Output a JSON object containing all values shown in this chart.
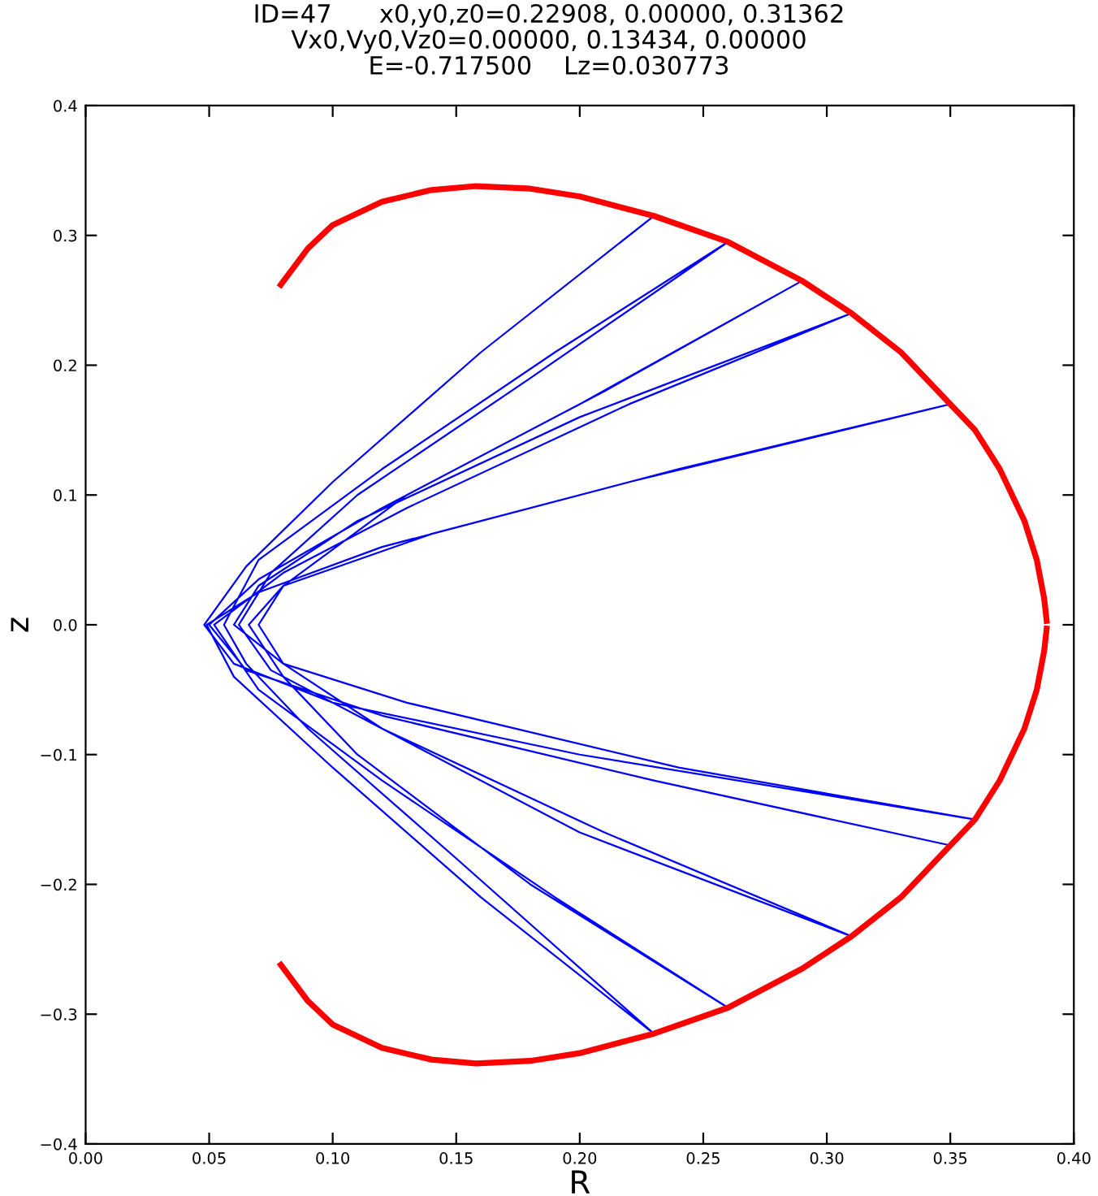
{
  "chart_data": {
    "type": "line",
    "title": "ID=47      x0,y0,z0=0.22908, 0.00000, 0.31362\nVx0,Vy0,Vz0=0.00000, 0.13434, 0.00000\nE=-0.717500    Lz=0.030773",
    "xlabel": "R",
    "ylabel": "z",
    "xlim": [
      0,
      0.4
    ],
    "ylim": [
      -0.4,
      0.4
    ],
    "xticks": [
      {
        "value": 0,
        "label": "0.00"
      },
      {
        "value": 0.05,
        "label": "0.05"
      },
      {
        "value": 0.1,
        "label": "0.10"
      },
      {
        "value": 0.15,
        "label": "0.15"
      },
      {
        "value": 0.2,
        "label": "0.20"
      },
      {
        "value": 0.25,
        "label": "0.25"
      },
      {
        "value": 0.3,
        "label": "0.30"
      },
      {
        "value": 0.35,
        "label": "0.35"
      },
      {
        "value": 0.4,
        "label": "0.40"
      }
    ],
    "yticks": [
      {
        "value": -0.4,
        "label": "−0.4"
      },
      {
        "value": -0.3,
        "label": "−0.3"
      },
      {
        "value": -0.2,
        "label": "−0.2"
      },
      {
        "value": -0.1,
        "label": "−0.1"
      },
      {
        "value": 0,
        "label": "0.0"
      },
      0.1,
      0.2,
      0.3,
      0.4
    ],
    "grid": false,
    "legend": false,
    "marker": "none",
    "line_style": "solid",
    "series": [
      {
        "color": "#0000ff",
        "x": [
          0.23,
          0.16,
          0.1,
          0.065,
          0.048,
          0.06,
          0.1,
          0.2,
          0.36,
          0.24,
          0.13,
          0.08,
          0.06,
          0.07,
          0.11,
          0.2,
          0.31,
          0.22,
          0.13,
          0.08,
          0.052,
          0.07,
          0.12,
          0.19,
          0.26,
          0.18,
          0.11,
          0.08,
          0.066,
          0.08,
          0.14,
          0.24,
          0.35,
          0.22,
          0.12,
          0.07,
          0.049,
          0.06,
          0.1,
          0.16,
          0.23,
          0.15,
          0.09,
          0.065,
          0.056,
          0.07,
          0.12,
          0.19,
          0.26,
          0.18,
          0.11,
          0.075,
          0.062,
          0.075,
          0.12,
          0.21,
          0.31,
          0.2,
          0.12,
          0.08,
          0.07,
          0.08,
          0.13,
          0.21,
          0.29,
          0.2,
          0.12,
          0.07,
          0.05,
          0.065,
          0.12,
          0.23,
          0.35
        ],
        "values": [
          0.315,
          0.21,
          0.11,
          0.045,
          0,
          -0.03,
          -0.06,
          -0.1,
          -0.15,
          -0.11,
          -0.06,
          -0.03,
          0,
          0.03,
          0.08,
          0.16,
          0.24,
          0.17,
          0.09,
          0.04,
          0,
          -0.05,
          -0.12,
          -0.21,
          -0.295,
          -0.2,
          -0.1,
          -0.04,
          0,
          0.03,
          0.07,
          0.12,
          0.17,
          0.11,
          0.06,
          0.025,
          0,
          -0.04,
          -0.11,
          -0.21,
          -0.315,
          -0.18,
          -0.08,
          -0.03,
          0,
          0.05,
          0.12,
          0.21,
          0.295,
          0.19,
          0.1,
          0.04,
          0,
          -0.035,
          -0.08,
          -0.16,
          -0.24,
          -0.16,
          -0.08,
          -0.03,
          0,
          0.03,
          0.1,
          0.18,
          0.265,
          0.17,
          0.09,
          0.035,
          0,
          -0.035,
          -0.07,
          -0.12,
          -0.17
        ]
      },
      {
        "color": "#ff0000",
        "x": [
          0.079,
          0.09,
          0.1,
          0.12,
          0.14,
          0.158,
          0.18,
          0.2,
          0.23,
          0.26,
          0.29,
          0.31,
          0.33,
          0.35,
          0.36,
          0.37,
          0.38,
          0.385,
          0.388,
          0.389
        ],
        "values": [
          0.262,
          0.29,
          0.308,
          0.326,
          0.335,
          0.338,
          0.336,
          0.33,
          0.315,
          0.295,
          0.265,
          0.24,
          0.21,
          0.17,
          0.15,
          0.12,
          0.08,
          0.05,
          0.02,
          0.003
        ]
      },
      {
        "color": "#ff0000",
        "x": [
          0.079,
          0.09,
          0.1,
          0.12,
          0.14,
          0.158,
          0.18,
          0.2,
          0.23,
          0.26,
          0.29,
          0.31,
          0.33,
          0.35,
          0.36,
          0.37,
          0.38,
          0.385,
          0.388,
          0.389
        ],
        "values": [
          -0.262,
          -0.29,
          -0.308,
          -0.326,
          -0.335,
          -0.338,
          -0.336,
          -0.33,
          -0.315,
          -0.295,
          -0.265,
          -0.24,
          -0.21,
          -0.17,
          -0.15,
          -0.12,
          -0.08,
          -0.05,
          -0.02,
          -0.003
        ]
      }
    ]
  }
}
